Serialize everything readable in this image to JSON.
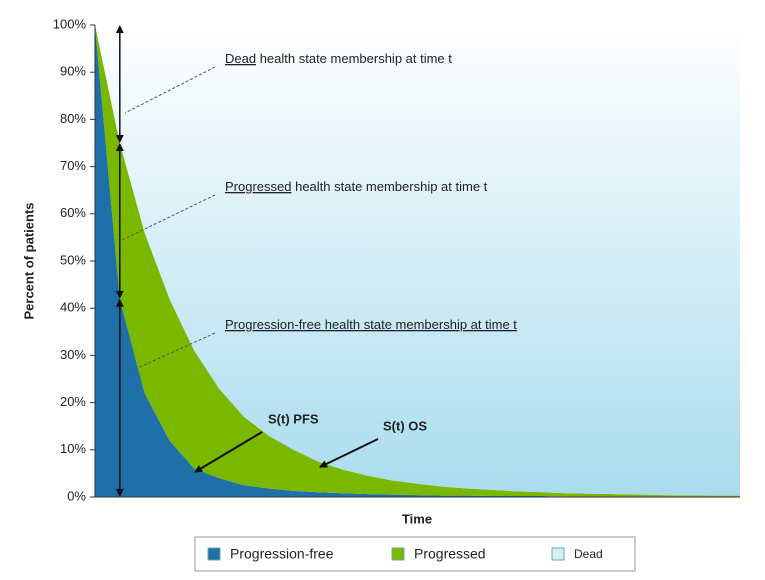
{
  "chart_data": {
    "type": "area",
    "stacked": true,
    "y_label": "Percent of patients",
    "x_label": "Time",
    "categories": [
      null,
      null,
      null,
      null,
      null,
      null,
      null,
      null,
      null,
      null,
      null,
      null,
      null,
      null,
      null,
      null,
      null,
      null,
      null,
      null,
      null,
      null,
      null,
      null,
      null,
      null,
      null
    ],
    "ylim": [
      0,
      100
    ],
    "yticks": [
      {
        "value": 0,
        "label": "0%"
      },
      {
        "value": 10,
        "label": "10%"
      },
      {
        "value": 20,
        "label": "20%"
      },
      {
        "value": 30,
        "label": "30%"
      },
      {
        "value": 40,
        "label": "40%"
      },
      {
        "value": 50,
        "label": "50%"
      },
      {
        "value": 60,
        "label": "60%"
      },
      {
        "value": 70,
        "label": "70%"
      },
      {
        "value": 80,
        "label": "80%"
      },
      {
        "value": 90,
        "label": "90%"
      },
      {
        "value": 100,
        "label": "100%"
      }
    ],
    "series": [
      {
        "name": "Progression-free",
        "color": "#1f6fa8",
        "values": [
          100,
          42,
          22,
          12,
          6,
          4,
          2.5,
          1.8,
          1.3,
          1,
          0.8,
          0.6,
          0.5,
          0.4,
          0.3,
          0.3,
          0.2,
          0.2,
          0.2,
          0.1,
          0.1,
          0.1,
          0.1,
          0.1,
          0.05,
          0,
          0
        ]
      },
      {
        "name": "Progressed",
        "color": "#7ab800",
        "values": [
          0,
          33,
          34,
          30,
          25,
          19,
          14.5,
          11.2,
          8.7,
          6.5,
          5,
          3.9,
          3,
          2.4,
          1.9,
          1.5,
          1.3,
          1,
          0.8,
          0.7,
          0.6,
          0.5,
          0.4,
          0.3,
          0.3,
          0.3,
          0.3
        ]
      },
      {
        "name": "Dead",
        "color": "#d6eef8",
        "values": [
          0,
          25,
          44,
          58,
          69,
          77,
          83,
          87,
          90,
          92.5,
          94.2,
          95.5,
          96.5,
          97.2,
          97.8,
          98.2,
          98.5,
          98.8,
          99,
          99.2,
          99.3,
          99.4,
          99.5,
          99.6,
          99.65,
          99.7,
          99.7
        ]
      }
    ],
    "annotations": [
      {
        "underlined": "Dead",
        "text": " health state membership at time t"
      },
      {
        "underlined": "Progressed",
        "text": " health state membership at time t"
      },
      {
        "underlined": "Progression-free health state membership at time t"
      }
    ],
    "curve_labels": [
      "S(t) PFS",
      "S(t) OS"
    ]
  }
}
